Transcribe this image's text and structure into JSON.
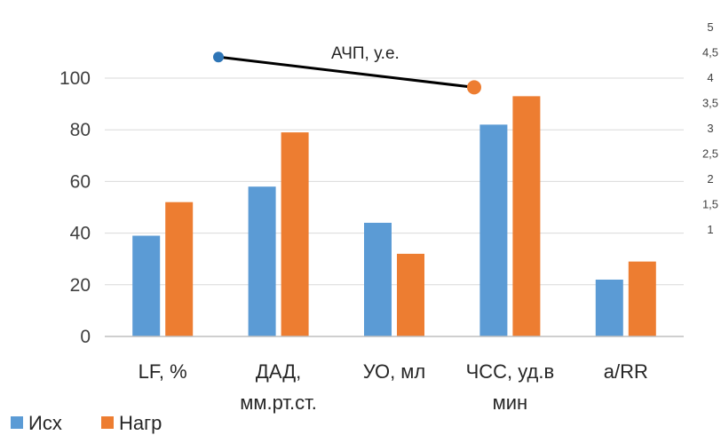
{
  "chart_data": {
    "type": "bar",
    "categories": [
      [
        "LF, %"
      ],
      [
        "ДАД,",
        "мм.рт.ст."
      ],
      [
        "УО, мл"
      ],
      [
        "ЧСС, уд.в",
        "мин"
      ],
      [
        "a/RR"
      ]
    ],
    "series": [
      {
        "name": "Исх",
        "values": [
          39,
          58,
          44,
          82,
          22
        ]
      },
      {
        "name": "Нагр",
        "values": [
          52,
          79,
          32,
          93,
          29
        ]
      }
    ],
    "ylim": [
      0,
      100
    ],
    "yticks": [
      0,
      20,
      40,
      60,
      80,
      100
    ],
    "grid": true,
    "legend_position": "bottom-left",
    "secondary": {
      "type": "line",
      "label": "АЧП, у.е.",
      "yticks": [
        "1",
        "1,5",
        "2",
        "2,5",
        "3",
        "3,5",
        "4",
        "4,5",
        "5"
      ],
      "values": [
        4.4,
        3.8
      ],
      "point_colors": [
        "#2e75b6",
        "#ed7d31"
      ]
    },
    "colors": {
      "Исх": "#5b9bd5",
      "Нагр": "#ed7d31",
      "line": "#000000",
      "grid": "#d9d9d9",
      "axis": "#bfbfbf"
    }
  }
}
